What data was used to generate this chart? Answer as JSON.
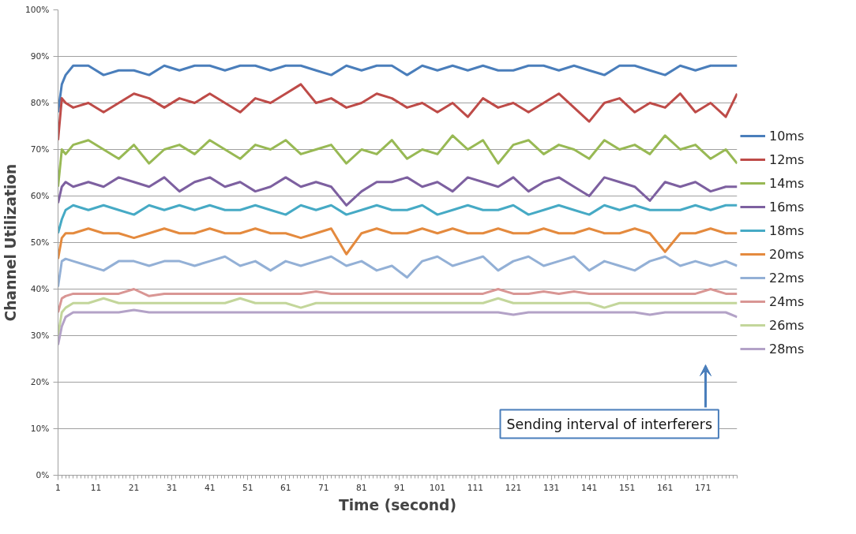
{
  "chart_data": {
    "type": "line",
    "xlabel": "Time (second)",
    "ylabel": "Channel Utilization",
    "x": [
      1,
      2,
      3,
      5,
      9,
      13,
      17,
      21,
      25,
      29,
      33,
      37,
      41,
      45,
      49,
      53,
      57,
      61,
      65,
      69,
      73,
      77,
      81,
      85,
      89,
      93,
      97,
      101,
      105,
      109,
      113,
      117,
      121,
      125,
      129,
      133,
      137,
      141,
      145,
      149,
      153,
      157,
      161,
      165,
      169,
      173,
      177,
      180
    ],
    "xlim": [
      1,
      180
    ],
    "xticks": [
      1,
      11,
      21,
      31,
      41,
      51,
      61,
      71,
      81,
      91,
      101,
      111,
      121,
      131,
      141,
      151,
      161,
      171
    ],
    "ylim": [
      0,
      100
    ],
    "yticks": [
      {
        "value": 0,
        "label": "0%"
      },
      {
        "value": 10,
        "label": "10%"
      },
      {
        "value": 20,
        "label": "20%"
      },
      {
        "value": 30,
        "label": "30%"
      },
      {
        "value": 40,
        "label": "40%"
      },
      {
        "value": 50,
        "label": "50%"
      },
      {
        "value": 60,
        "label": "60%"
      },
      {
        "value": 70,
        "label": "70%"
      },
      {
        "value": 80,
        "label": "80%"
      },
      {
        "value": 90,
        "label": "90%"
      },
      {
        "value": 100,
        "label": "100%"
      }
    ],
    "grid": "y",
    "legend": "right",
    "marker": "none",
    "line_style": "solid",
    "annotations": [
      {
        "text": "Sending interval of interferers"
      }
    ],
    "series": [
      {
        "name": "10ms",
        "color": "#4a7ebb",
        "values": [
          78,
          84,
          86,
          88,
          88,
          86,
          87,
          87,
          86,
          88,
          87,
          88,
          88,
          87,
          88,
          88,
          87,
          88,
          88,
          87,
          86,
          88,
          87,
          88,
          88,
          86,
          88,
          87,
          88,
          87,
          88,
          87,
          87,
          88,
          88,
          87,
          88,
          87,
          86,
          88,
          88,
          87,
          86,
          88,
          87,
          88,
          88,
          88
        ]
      },
      {
        "name": "12ms",
        "color": "#be4b48",
        "values": [
          72,
          81,
          80,
          79,
          80,
          78,
          80,
          82,
          81,
          79,
          81,
          80,
          82,
          80,
          78,
          81,
          80,
          82,
          84,
          80,
          81,
          79,
          80,
          82,
          81,
          79,
          80,
          78,
          80,
          77,
          81,
          79,
          80,
          78,
          80,
          82,
          79,
          76,
          80,
          81,
          78,
          80,
          79,
          82,
          78,
          80,
          77,
          82
        ]
      },
      {
        "name": "14ms",
        "color": "#98b954",
        "values": [
          62,
          70,
          69,
          71,
          72,
          70,
          68,
          71,
          67,
          70,
          71,
          69,
          72,
          70,
          68,
          71,
          70,
          72,
          69,
          70,
          71,
          67,
          70,
          69,
          72,
          68,
          70,
          69,
          73,
          70,
          72,
          67,
          71,
          72,
          69,
          71,
          70,
          68,
          72,
          70,
          71,
          69,
          73,
          70,
          71,
          68,
          70,
          67
        ]
      },
      {
        "name": "16ms",
        "color": "#7d60a0",
        "values": [
          58.5,
          62,
          63,
          62,
          63,
          62,
          64,
          63,
          62,
          64,
          61,
          63,
          64,
          62,
          63,
          61,
          62,
          64,
          62,
          63,
          62,
          58,
          61,
          63,
          63,
          64,
          62,
          63,
          61,
          64,
          63,
          62,
          64,
          61,
          63,
          64,
          62,
          60,
          64,
          63,
          62,
          59,
          63,
          62,
          63,
          61,
          62,
          62
        ]
      },
      {
        "name": "18ms",
        "color": "#46aac5",
        "values": [
          52,
          55,
          57,
          58,
          57,
          58,
          57,
          56,
          58,
          57,
          58,
          57,
          58,
          57,
          57,
          58,
          57,
          56,
          58,
          57,
          58,
          56,
          57,
          58,
          57,
          57,
          58,
          56,
          57,
          58,
          57,
          57,
          58,
          56,
          57,
          58,
          57,
          56,
          58,
          57,
          58,
          57,
          57,
          57,
          58,
          57,
          58,
          58
        ]
      },
      {
        "name": "20ms",
        "color": "#e48a3e",
        "values": [
          46.5,
          51,
          52,
          52,
          53,
          52,
          52,
          51,
          52,
          53,
          52,
          52,
          53,
          52,
          52,
          53,
          52,
          52,
          51,
          52,
          53,
          47.5,
          52,
          53,
          52,
          52,
          53,
          52,
          53,
          52,
          52,
          53,
          52,
          52,
          53,
          52,
          52,
          53,
          52,
          52,
          53,
          52,
          48,
          52,
          52,
          53,
          52,
          52
        ]
      },
      {
        "name": "22ms",
        "color": "#93b0d6",
        "values": [
          40.5,
          46,
          46.5,
          46,
          45,
          44,
          46,
          46,
          45,
          46,
          46,
          45,
          46,
          47,
          45,
          46,
          44,
          46,
          45,
          46,
          47,
          45,
          46,
          44,
          45,
          42.5,
          46,
          47,
          45,
          46,
          47,
          44,
          46,
          47,
          45,
          46,
          47,
          44,
          46,
          45,
          44,
          46,
          47,
          45,
          46,
          45,
          46,
          45
        ]
      },
      {
        "name": "24ms",
        "color": "#d99694",
        "values": [
          35,
          38,
          38.5,
          39,
          39,
          39,
          39,
          40,
          38.5,
          39,
          39,
          39,
          39,
          39,
          39,
          39,
          39,
          39,
          39,
          39.5,
          39,
          39,
          39,
          39,
          39,
          39,
          39,
          39,
          39,
          39,
          39,
          40,
          39,
          39,
          39.5,
          39,
          39.5,
          39,
          39,
          39,
          39,
          39,
          39,
          39,
          39,
          40,
          39,
          39
        ]
      },
      {
        "name": "26ms",
        "color": "#c3d69b",
        "values": [
          30,
          35,
          36,
          37,
          37,
          38,
          37,
          37,
          37,
          37,
          37,
          37,
          37,
          37,
          38,
          37,
          37,
          37,
          36,
          37,
          37,
          37,
          37,
          37,
          37,
          37,
          37,
          37,
          37,
          37,
          37,
          38,
          37,
          37,
          37,
          37,
          37,
          37,
          36,
          37,
          37,
          37,
          37,
          37,
          37,
          37,
          37,
          37
        ]
      },
      {
        "name": "28ms",
        "color": "#b3a2c7",
        "values": [
          28,
          32,
          34,
          35,
          35,
          35,
          35,
          35.5,
          35,
          35,
          35,
          35,
          35,
          35,
          35,
          35,
          35,
          35,
          35,
          35,
          35,
          35,
          35,
          35,
          35,
          35,
          35,
          35,
          35,
          35,
          35,
          35,
          34.5,
          35,
          35,
          35,
          35,
          35,
          35,
          35,
          35,
          34.5,
          35,
          35,
          35,
          35,
          35,
          34
        ]
      }
    ]
  }
}
